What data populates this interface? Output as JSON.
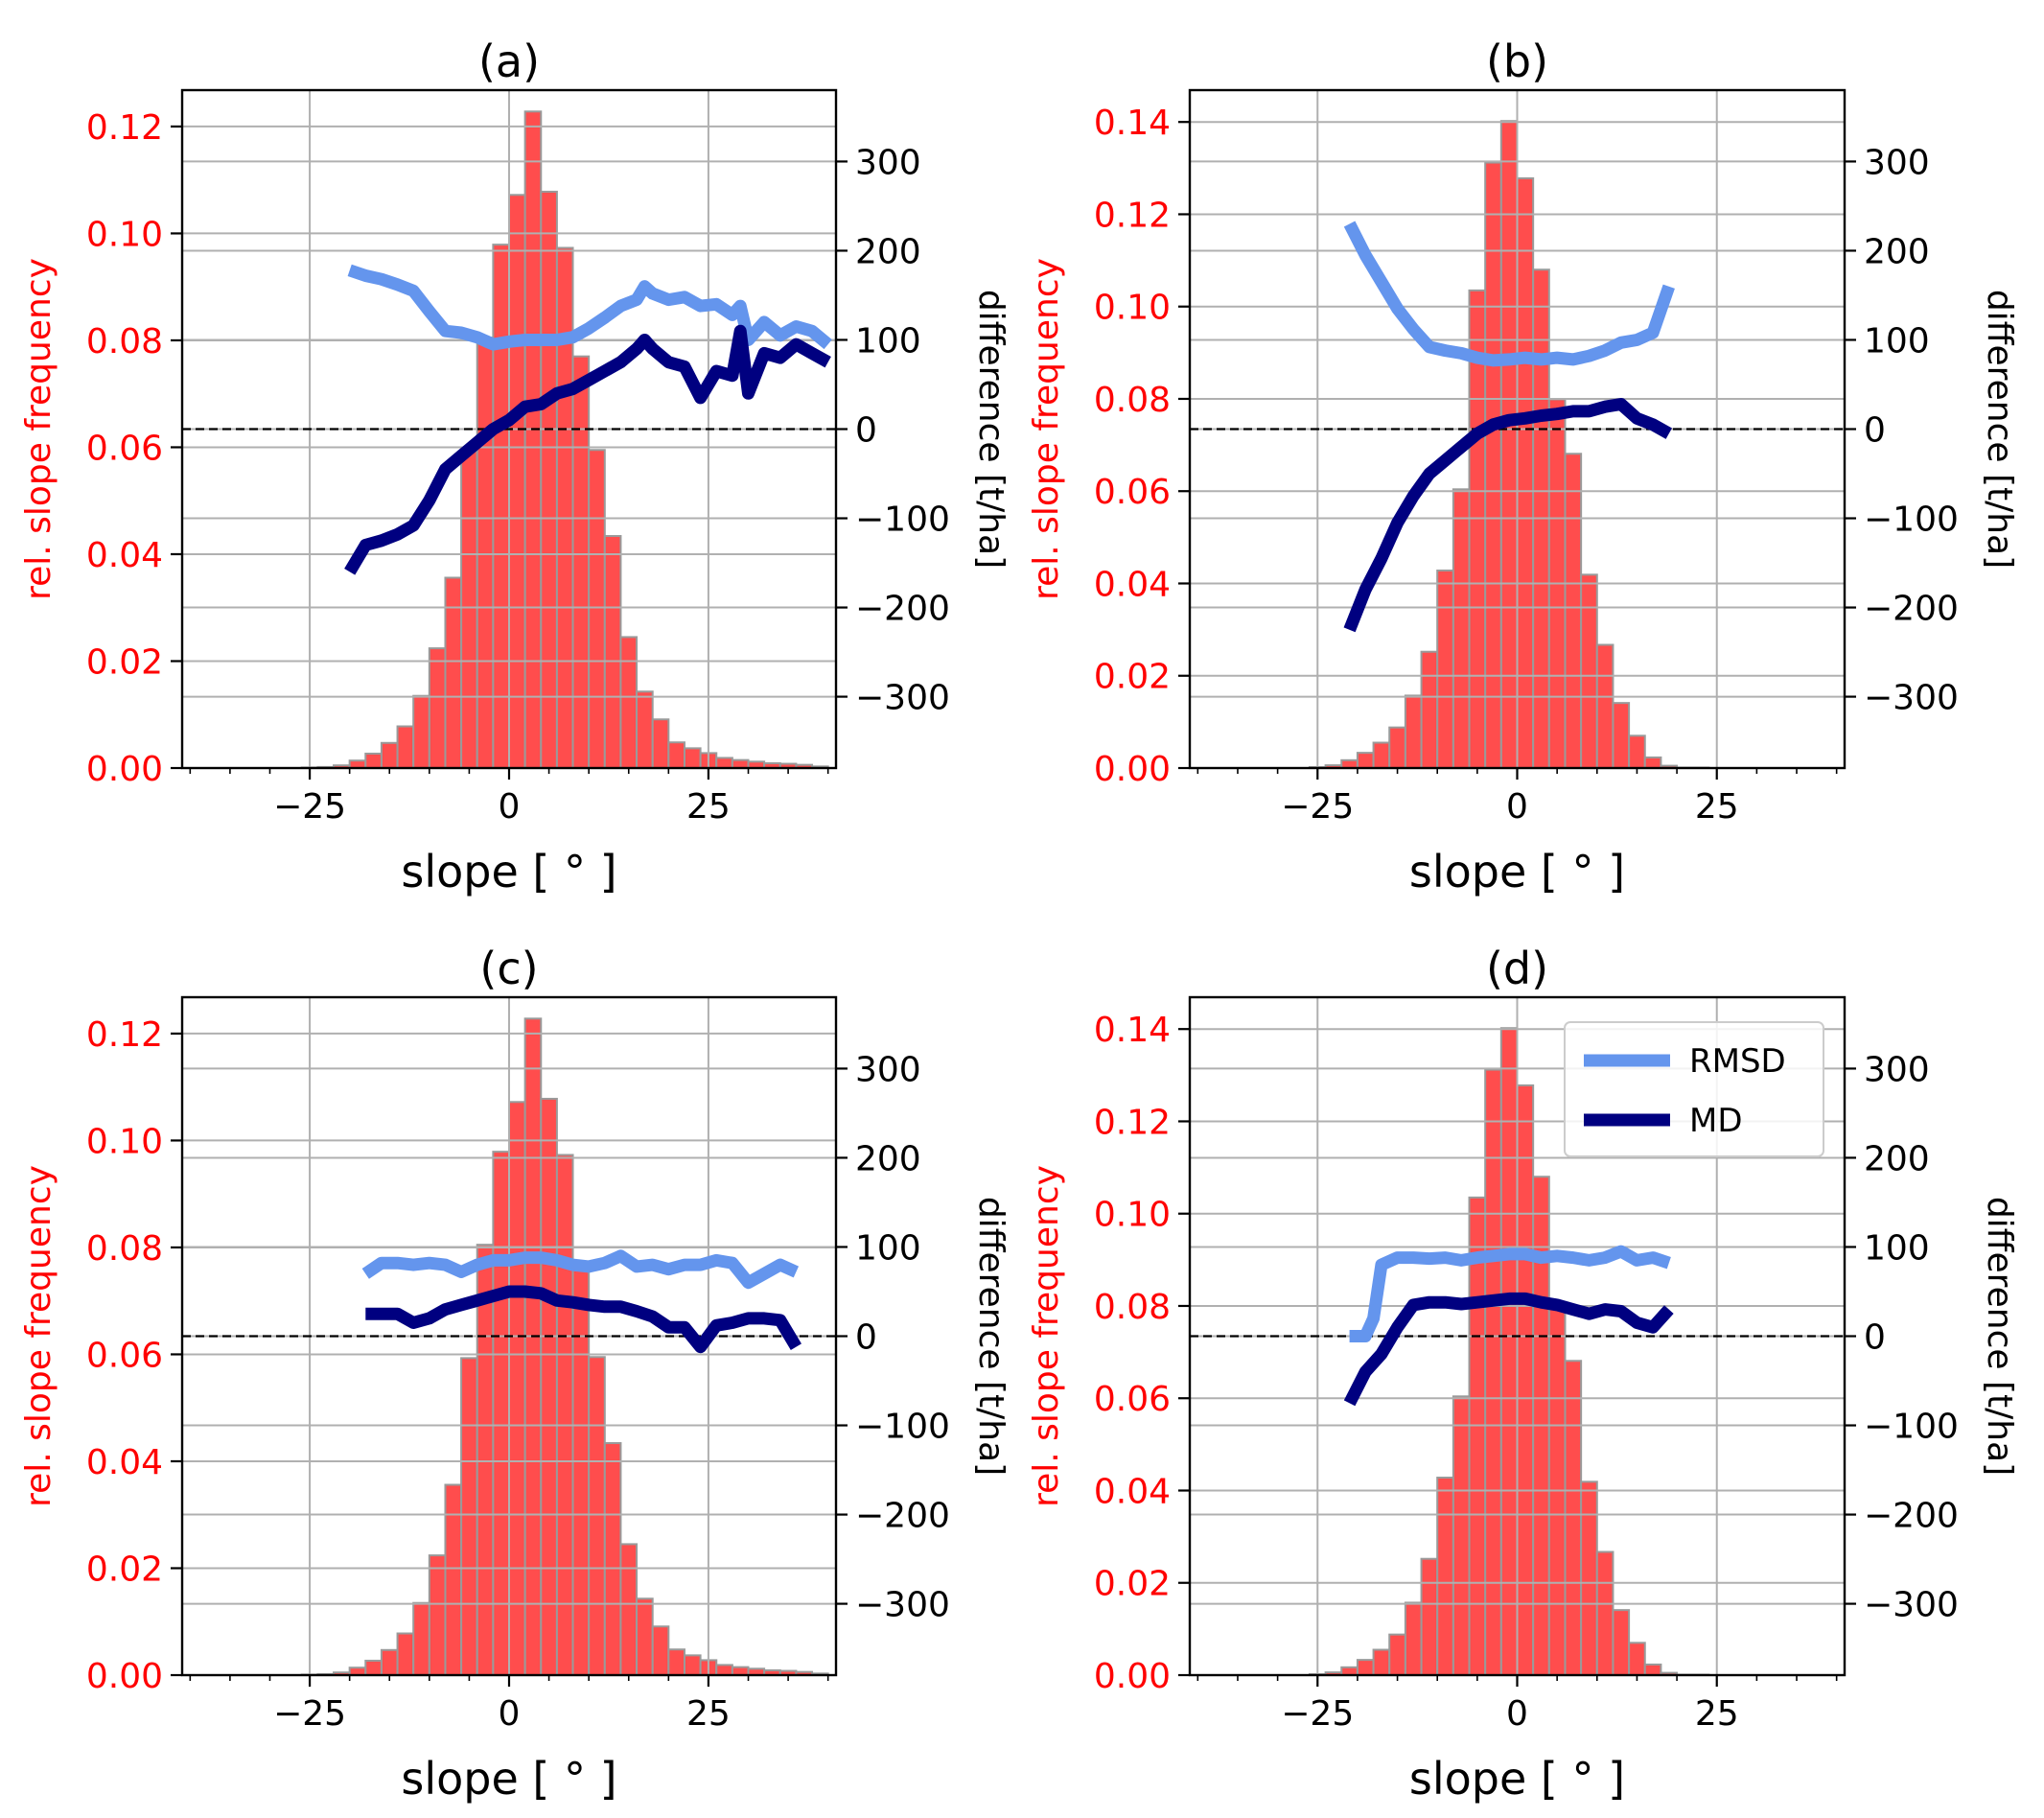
{
  "figure": {
    "xlabel": "slope [$^\\circ$]",
    "xlabel_text": "slope [ ° ]"
  },
  "colors": {
    "hist_fill": "#ff4d4d",
    "hist_edge": "#9a9a9a",
    "left_axis": "#ff0000",
    "rmsd": "#6495ed",
    "md": "#000080",
    "grid": "#b0b0b0",
    "zero_line": "#000000"
  },
  "chart_data": [
    {
      "type": "bar",
      "title": "(a)",
      "xlabel": "slope [ ° ]",
      "ylabel": "rel. slope frequency",
      "y2label": "difference [t/ha]",
      "xlim": [
        -41,
        41
      ],
      "ylim": [
        0,
        0.1268
      ],
      "y2lim": [
        -380,
        380
      ],
      "xticks": [
        "−25",
        "0",
        "25"
      ],
      "xtick_values": [
        -25,
        0,
        25
      ],
      "yticks": [
        "0.00",
        "0.02",
        "0.04",
        "0.06",
        "0.08",
        "0.10",
        "0.12"
      ],
      "ytick_values": [
        0,
        0.02,
        0.04,
        0.06,
        0.08,
        0.1,
        0.12
      ],
      "y2ticks": [
        "−300",
        "−200",
        "−100",
        "0",
        "100",
        "200",
        "300"
      ],
      "y2tick_values": [
        -300,
        -200,
        -100,
        0,
        100,
        200,
        300
      ],
      "hist": {
        "edges": [
          -40,
          -38,
          -36,
          -34,
          -32,
          -30,
          -28,
          -26,
          -24,
          -22,
          -20,
          -18,
          -16,
          -14,
          -12,
          -10,
          -8,
          -6,
          -4,
          -2,
          0,
          2,
          4,
          6,
          8,
          10,
          12,
          14,
          16,
          18,
          20,
          22,
          24,
          26,
          28,
          30,
          32,
          34,
          36,
          38,
          40
        ],
        "values": [
          0,
          0,
          0,
          0,
          0,
          0,
          0,
          0.0001,
          0.0002,
          0.0005,
          0.0014,
          0.0027,
          0.0047,
          0.0078,
          0.0135,
          0.0224,
          0.0356,
          0.0593,
          0.0805,
          0.0979,
          0.1072,
          0.1228,
          0.1078,
          0.0973,
          0.077,
          0.0595,
          0.0434,
          0.0245,
          0.0143,
          0.0091,
          0.0048,
          0.0037,
          0.0028,
          0.0019,
          0.0015,
          0.0012,
          0.0009,
          0.0008,
          0.0006,
          0.0003
        ]
      },
      "series": [
        {
          "name": "RMSD",
          "x": [
            -20,
            -18,
            -16,
            -14,
            -12,
            -10,
            -8,
            -6,
            -4,
            -2,
            0,
            2,
            4,
            6,
            8,
            10,
            12,
            14,
            16,
            17,
            18,
            20,
            22,
            24,
            26,
            28,
            29,
            30,
            32,
            34,
            36,
            38,
            40
          ],
          "y": [
            178,
            172,
            168,
            162,
            155,
            132,
            110,
            108,
            103,
            95,
            98,
            100,
            100,
            100,
            103,
            113,
            125,
            138,
            145,
            160,
            152,
            145,
            148,
            138,
            140,
            128,
            138,
            100,
            120,
            105,
            115,
            110,
            95
          ]
        },
        {
          "name": "MD",
          "x": [
            -20,
            -18,
            -16,
            -14,
            -12,
            -10,
            -8,
            -6,
            -4,
            -2,
            0,
            2,
            4,
            6,
            8,
            10,
            12,
            14,
            16,
            17,
            18,
            20,
            22,
            24,
            26,
            28,
            29,
            30,
            32,
            34,
            36,
            38,
            40
          ],
          "y": [
            -160,
            -130,
            -125,
            -118,
            -108,
            -80,
            -45,
            -30,
            -15,
            0,
            10,
            25,
            28,
            40,
            45,
            55,
            65,
            75,
            90,
            100,
            90,
            75,
            70,
            35,
            65,
            60,
            110,
            40,
            85,
            80,
            95,
            85,
            75
          ]
        }
      ]
    },
    {
      "type": "bar",
      "title": "(b)",
      "xlabel": "slope [ ° ]",
      "ylabel": "rel. slope frequency",
      "y2label": "difference [t/ha]",
      "xlim": [
        -41,
        41
      ],
      "ylim": [
        0,
        0.1469
      ],
      "y2lim": [
        -380,
        380
      ],
      "xticks": [
        "−25",
        "0",
        "25"
      ],
      "xtick_values": [
        -25,
        0,
        25
      ],
      "yticks": [
        "0.00",
        "0.02",
        "0.04",
        "0.06",
        "0.08",
        "0.10",
        "0.12",
        "0.14"
      ],
      "ytick_values": [
        0,
        0.02,
        0.04,
        0.06,
        0.08,
        0.1,
        0.12,
        0.14
      ],
      "y2ticks": [
        "−300",
        "−200",
        "−100",
        "0",
        "100",
        "200",
        "300"
      ],
      "y2tick_values": [
        -300,
        -200,
        -100,
        0,
        100,
        200,
        300
      ],
      "hist": {
        "edges": [
          -26,
          -24,
          -22,
          -20,
          -18,
          -16,
          -14,
          -12,
          -10,
          -8,
          -6,
          -4,
          -2,
          0,
          2,
          4,
          6,
          8,
          10,
          12,
          14,
          16,
          18,
          20,
          22,
          24
        ],
        "values": [
          0.0002,
          0.0006,
          0.0017,
          0.0033,
          0.0055,
          0.0088,
          0.0157,
          0.0252,
          0.0428,
          0.0604,
          0.1035,
          0.1312,
          0.1402,
          0.1278,
          0.108,
          0.0799,
          0.0681,
          0.0419,
          0.0267,
          0.0141,
          0.007,
          0.0023,
          0.0005,
          0.0001,
          0.0001
        ]
      },
      "series": [
        {
          "name": "RMSD",
          "x": [
            -21,
            -19,
            -17,
            -15,
            -13,
            -11,
            -9,
            -7,
            -5,
            -3,
            -1,
            1,
            3,
            5,
            7,
            9,
            11,
            13,
            15,
            17,
            19
          ],
          "y": [
            230,
            195,
            165,
            135,
            112,
            92,
            88,
            85,
            80,
            77,
            78,
            80,
            78,
            80,
            78,
            82,
            88,
            97,
            100,
            108,
            160
          ]
        },
        {
          "name": "MD",
          "x": [
            -21,
            -19,
            -17,
            -15,
            -13,
            -11,
            -9,
            -7,
            -5,
            -3,
            -1,
            1,
            3,
            5,
            7,
            9,
            11,
            13,
            15,
            17,
            19
          ],
          "y": [
            -225,
            -180,
            -145,
            -105,
            -75,
            -50,
            -35,
            -20,
            -5,
            5,
            10,
            12,
            15,
            17,
            20,
            20,
            25,
            28,
            12,
            5,
            -5
          ]
        }
      ]
    },
    {
      "type": "bar",
      "title": "(c)",
      "xlabel": "slope [ ° ]",
      "ylabel": "rel. slope frequency",
      "y2label": "difference [t/ha]",
      "xlim": [
        -41,
        41
      ],
      "ylim": [
        0,
        0.1268
      ],
      "y2lim": [
        -380,
        380
      ],
      "xticks": [
        "−25",
        "0",
        "25"
      ],
      "xtick_values": [
        -25,
        0,
        25
      ],
      "yticks": [
        "0.00",
        "0.02",
        "0.04",
        "0.06",
        "0.08",
        "0.10",
        "0.12"
      ],
      "ytick_values": [
        0,
        0.02,
        0.04,
        0.06,
        0.08,
        0.1,
        0.12
      ],
      "y2ticks": [
        "−300",
        "−200",
        "−100",
        "0",
        "100",
        "200",
        "300"
      ],
      "y2tick_values": [
        -300,
        -200,
        -100,
        0,
        100,
        200,
        300
      ],
      "hist": {
        "edges": [
          -40,
          -38,
          -36,
          -34,
          -32,
          -30,
          -28,
          -26,
          -24,
          -22,
          -20,
          -18,
          -16,
          -14,
          -12,
          -10,
          -8,
          -6,
          -4,
          -2,
          0,
          2,
          4,
          6,
          8,
          10,
          12,
          14,
          16,
          18,
          20,
          22,
          24,
          26,
          28,
          30,
          32,
          34,
          36,
          38,
          40
        ],
        "values": [
          0,
          0,
          0,
          0,
          0,
          0,
          0,
          0.0001,
          0.0002,
          0.0005,
          0.0014,
          0.0027,
          0.0047,
          0.0078,
          0.0135,
          0.0224,
          0.0356,
          0.0593,
          0.0805,
          0.0979,
          0.1072,
          0.1228,
          0.1078,
          0.0973,
          0.077,
          0.0595,
          0.0434,
          0.0245,
          0.0143,
          0.0091,
          0.0048,
          0.0037,
          0.0028,
          0.0019,
          0.0015,
          0.0012,
          0.0009,
          0.0008,
          0.0006,
          0.0003
        ]
      },
      "series": [
        {
          "name": "RMSD",
          "x": [
            -18,
            -16,
            -14,
            -12,
            -10,
            -8,
            -6,
            -4,
            -2,
            0,
            2,
            4,
            6,
            8,
            10,
            12,
            14,
            16,
            18,
            20,
            22,
            24,
            26,
            28,
            30,
            32,
            34,
            36
          ],
          "y": [
            70,
            82,
            82,
            80,
            82,
            80,
            72,
            80,
            85,
            85,
            88,
            88,
            85,
            80,
            78,
            82,
            90,
            78,
            80,
            75,
            80,
            80,
            85,
            82,
            60,
            70,
            80,
            72
          ]
        },
        {
          "name": "MD",
          "x": [
            -18,
            -16,
            -14,
            -12,
            -10,
            -8,
            -6,
            -4,
            -2,
            0,
            2,
            4,
            6,
            8,
            10,
            12,
            14,
            16,
            18,
            20,
            22,
            24,
            26,
            28,
            30,
            32,
            34,
            36
          ],
          "y": [
            25,
            25,
            25,
            15,
            20,
            30,
            35,
            40,
            45,
            50,
            50,
            48,
            40,
            38,
            35,
            33,
            33,
            28,
            22,
            10,
            10,
            -12,
            12,
            15,
            20,
            20,
            18,
            -12
          ]
        }
      ]
    },
    {
      "type": "bar",
      "title": "(d)",
      "xlabel": "slope [ ° ]",
      "ylabel": "rel. slope frequency",
      "y2label": "difference [t/ha]",
      "xlim": [
        -41,
        41
      ],
      "ylim": [
        0,
        0.1469
      ],
      "y2lim": [
        -380,
        380
      ],
      "xticks": [
        "−25",
        "0",
        "25"
      ],
      "xtick_values": [
        -25,
        0,
        25
      ],
      "yticks": [
        "0.00",
        "0.02",
        "0.04",
        "0.06",
        "0.08",
        "0.10",
        "0.12",
        "0.14"
      ],
      "ytick_values": [
        0,
        0.02,
        0.04,
        0.06,
        0.08,
        0.1,
        0.12,
        0.14
      ],
      "y2ticks": [
        "−300",
        "−200",
        "−100",
        "0",
        "100",
        "200",
        "300"
      ],
      "y2tick_values": [
        -300,
        -200,
        -100,
        0,
        100,
        200,
        300
      ],
      "legend": {
        "location": "upper right",
        "entries": [
          "RMSD",
          "MD"
        ]
      },
      "hist": {
        "edges": [
          -26,
          -24,
          -22,
          -20,
          -18,
          -16,
          -14,
          -12,
          -10,
          -8,
          -6,
          -4,
          -2,
          0,
          2,
          4,
          6,
          8,
          10,
          12,
          14,
          16,
          18,
          20,
          22,
          24
        ],
        "values": [
          0.0002,
          0.0006,
          0.0017,
          0.0033,
          0.0055,
          0.0088,
          0.0157,
          0.0252,
          0.0428,
          0.0604,
          0.1035,
          0.1312,
          0.1402,
          0.1278,
          0.108,
          0.0799,
          0.0681,
          0.0419,
          0.0267,
          0.0141,
          0.007,
          0.0023,
          0.0005,
          0.0001,
          0.0001
        ]
      },
      "series": [
        {
          "name": "RMSD",
          "x": [
            -21,
            -19,
            -18,
            -17,
            -15,
            -13,
            -11,
            -9,
            -7,
            -5,
            -3,
            -1,
            1,
            3,
            5,
            7,
            9,
            11,
            13,
            15,
            17,
            19
          ],
          "y": [
            0,
            0,
            20,
            80,
            88,
            88,
            87,
            88,
            85,
            88,
            90,
            92,
            92,
            88,
            90,
            88,
            85,
            88,
            95,
            85,
            88,
            82
          ]
        },
        {
          "name": "MD",
          "x": [
            -21,
            -19,
            -17,
            -15,
            -13,
            -11,
            -9,
            -7,
            -5,
            -3,
            -1,
            1,
            3,
            5,
            7,
            9,
            11,
            13,
            15,
            17,
            19
          ],
          "y": [
            -75,
            -40,
            -20,
            10,
            35,
            38,
            38,
            36,
            38,
            40,
            42,
            42,
            38,
            35,
            30,
            25,
            30,
            28,
            15,
            10,
            30
          ]
        }
      ]
    }
  ]
}
